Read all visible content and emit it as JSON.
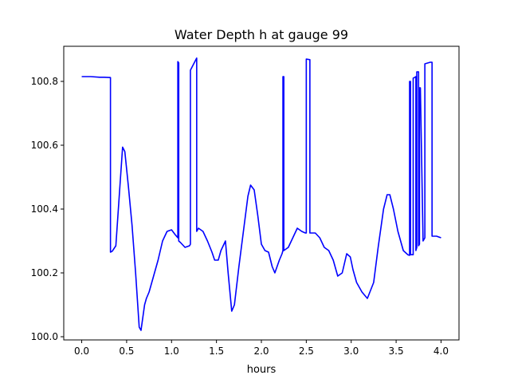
{
  "chart_data": {
    "type": "line",
    "title": "Water Depth h at gauge 99",
    "xlabel": "hours",
    "ylabel": "",
    "xlim": [
      -0.2,
      4.2
    ],
    "ylim": [
      99.99,
      100.91
    ],
    "xticks": [
      0.0,
      0.5,
      1.0,
      1.5,
      2.0,
      2.5,
      3.0,
      3.5,
      4.0
    ],
    "xtick_labels": [
      "0.0",
      "0.5",
      "1.0",
      "1.5",
      "2.0",
      "2.5",
      "3.0",
      "3.5",
      "4.0"
    ],
    "yticks": [
      100.0,
      100.2,
      100.4,
      100.6,
      100.8
    ],
    "ytick_labels": [
      "100.0",
      "100.2",
      "100.4",
      "100.6",
      "100.8"
    ],
    "grid": false,
    "series": [
      {
        "color": "#0000ff",
        "x": [
          0.0,
          0.1,
          0.2,
          0.25,
          0.32,
          0.32,
          0.34,
          0.38,
          0.42,
          0.455,
          0.48,
          0.52,
          0.56,
          0.6,
          0.64,
          0.66,
          0.68,
          0.7,
          0.72,
          0.75,
          0.8,
          0.85,
          0.9,
          0.95,
          1.0,
          1.04,
          1.07,
          1.07,
          1.08,
          1.08,
          1.1,
          1.15,
          1.2,
          1.21,
          1.21,
          1.28,
          1.28,
          1.3,
          1.35,
          1.4,
          1.45,
          1.48,
          1.52,
          1.55,
          1.6,
          1.63,
          1.67,
          1.7,
          1.75,
          1.8,
          1.85,
          1.88,
          1.92,
          1.96,
          2.0,
          2.04,
          2.08,
          2.12,
          2.15,
          2.2,
          2.23,
          2.24,
          2.24,
          2.25,
          2.25,
          2.3,
          2.35,
          2.4,
          2.45,
          2.49,
          2.5,
          2.5,
          2.54,
          2.54,
          2.6,
          2.65,
          2.7,
          2.75,
          2.8,
          2.85,
          2.9,
          2.95,
          2.99,
          3.02,
          3.06,
          3.12,
          3.18,
          3.25,
          3.3,
          3.36,
          3.4,
          3.43,
          3.47,
          3.52,
          3.58,
          3.63,
          3.65,
          3.65,
          3.66,
          3.66,
          3.69,
          3.69,
          3.71,
          3.72,
          3.72,
          3.73,
          3.73,
          3.75,
          3.75,
          3.76,
          3.76,
          3.77,
          3.8,
          3.82,
          3.82,
          3.88,
          3.9,
          3.9,
          3.95,
          4.0
        ],
        "values": [
          100.815,
          100.815,
          100.813,
          100.813,
          100.812,
          100.265,
          100.268,
          100.285,
          100.45,
          100.594,
          100.58,
          100.47,
          100.35,
          100.2,
          100.03,
          100.02,
          100.06,
          100.1,
          100.12,
          100.14,
          100.19,
          100.24,
          100.3,
          100.33,
          100.335,
          100.32,
          100.31,
          100.862,
          100.858,
          100.3,
          100.295,
          100.28,
          100.285,
          100.29,
          100.835,
          100.873,
          100.33,
          100.34,
          100.33,
          100.3,
          100.265,
          100.24,
          100.24,
          100.27,
          100.3,
          100.2,
          100.08,
          100.1,
          100.22,
          100.33,
          100.44,
          100.475,
          100.46,
          100.38,
          100.29,
          100.27,
          100.265,
          100.22,
          100.2,
          100.24,
          100.26,
          100.27,
          100.815,
          100.815,
          100.27,
          100.28,
          100.31,
          100.34,
          100.33,
          100.325,
          100.325,
          100.87,
          100.868,
          100.325,
          100.325,
          100.31,
          100.28,
          100.27,
          100.24,
          100.19,
          100.2,
          100.26,
          100.25,
          100.21,
          100.17,
          100.14,
          100.12,
          100.17,
          100.28,
          100.4,
          100.445,
          100.445,
          100.4,
          100.33,
          100.27,
          100.257,
          100.255,
          100.8,
          100.8,
          100.257,
          100.257,
          100.81,
          100.813,
          100.815,
          100.27,
          100.28,
          100.83,
          100.83,
          100.285,
          100.29,
          100.78,
          100.78,
          100.3,
          100.31,
          100.855,
          100.86,
          100.86,
          100.315,
          100.315,
          100.31
        ]
      }
    ]
  }
}
